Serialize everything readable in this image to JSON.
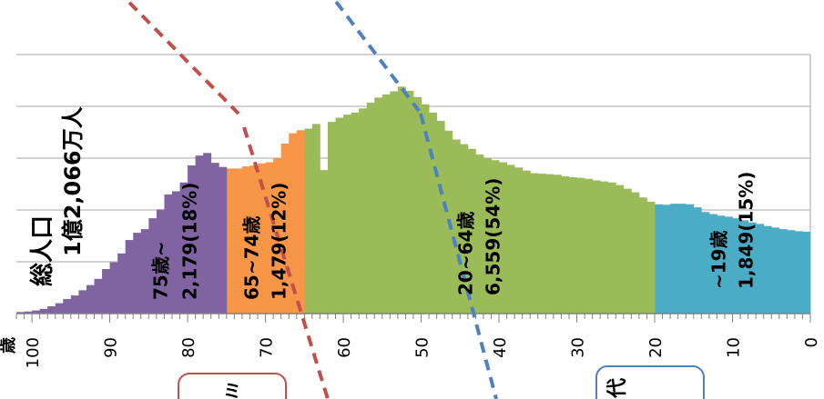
{
  "chart_data": {
    "type": "bar",
    "title_lines": [
      "総人口",
      "1億2,066万人"
    ],
    "xaxis_unit": "歳",
    "xaxis_ticks": [
      "100",
      "90",
      "80",
      "70",
      "60",
      "50",
      "40",
      "30",
      "20",
      "10",
      "0"
    ],
    "xlim": [
      0,
      102
    ],
    "ylim": [
      0,
      2.5
    ],
    "grid": "horizontal",
    "age_order": "descending",
    "groups": [
      {
        "name": "75歳~",
        "value_label": "2,179(18%)",
        "age_from": 75,
        "age_to": 101,
        "color": "#8064A2"
      },
      {
        "name": "65~74歳",
        "value_label": "1,479(12%)",
        "age_from": 65,
        "age_to": 74,
        "color": "#F79646"
      },
      {
        "name": "20~64歳",
        "value_label": "6,559(54%)",
        "age_from": 20,
        "age_to": 64,
        "color": "#9BBB59"
      },
      {
        "name": "~19歳",
        "value_label": "1,849(15%)",
        "age_from": 0,
        "age_to": 19,
        "color": "#4BACC6"
      }
    ],
    "age_values": [
      {
        "age": 0,
        "value": 1.58
      },
      {
        "age": 1,
        "value": 1.59
      },
      {
        "age": 2,
        "value": 1.61
      },
      {
        "age": 3,
        "value": 1.63
      },
      {
        "age": 4,
        "value": 1.66
      },
      {
        "age": 5,
        "value": 1.69
      },
      {
        "age": 6,
        "value": 1.73
      },
      {
        "age": 7,
        "value": 1.76
      },
      {
        "age": 8,
        "value": 1.8
      },
      {
        "age": 9,
        "value": 1.84
      },
      {
        "age": 10,
        "value": 1.87
      },
      {
        "age": 11,
        "value": 1.89
      },
      {
        "age": 12,
        "value": 1.92
      },
      {
        "age": 13,
        "value": 1.96
      },
      {
        "age": 14,
        "value": 2.05
      },
      {
        "age": 15,
        "value": 2.11
      },
      {
        "age": 16,
        "value": 2.12
      },
      {
        "age": 17,
        "value": 2.12
      },
      {
        "age": 18,
        "value": 2.1
      },
      {
        "age": 19,
        "value": 2.11
      },
      {
        "age": 20,
        "value": 2.16
      },
      {
        "age": 21,
        "value": 2.24
      },
      {
        "age": 22,
        "value": 2.34
      },
      {
        "age": 23,
        "value": 2.41
      },
      {
        "age": 24,
        "value": 2.48
      },
      {
        "age": 25,
        "value": 2.53
      },
      {
        "age": 26,
        "value": 2.55
      },
      {
        "age": 27,
        "value": 2.57
      },
      {
        "age": 28,
        "value": 2.6
      },
      {
        "age": 29,
        "value": 2.62
      },
      {
        "age": 30,
        "value": 2.63
      },
      {
        "age": 31,
        "value": 2.65
      },
      {
        "age": 32,
        "value": 2.68
      },
      {
        "age": 33,
        "value": 2.69
      },
      {
        "age": 34,
        "value": 2.7
      },
      {
        "age": 35,
        "value": 2.71
      },
      {
        "age": 36,
        "value": 2.76
      },
      {
        "age": 37,
        "value": 2.82
      },
      {
        "age": 38,
        "value": 2.87
      },
      {
        "age": 39,
        "value": 2.92
      },
      {
        "age": 40,
        "value": 2.96
      },
      {
        "age": 41,
        "value": 3.0
      },
      {
        "age": 42,
        "value": 3.07
      },
      {
        "age": 43,
        "value": 3.18
      },
      {
        "age": 44,
        "value": 3.27
      },
      {
        "age": 45,
        "value": 3.36
      },
      {
        "age": 46,
        "value": 3.53
      },
      {
        "age": 47,
        "value": 3.72
      },
      {
        "age": 48,
        "value": 3.88
      },
      {
        "age": 49,
        "value": 4.04
      },
      {
        "age": 50,
        "value": 4.18
      },
      {
        "age": 51,
        "value": 4.3
      },
      {
        "age": 52,
        "value": 4.38
      },
      {
        "age": 53,
        "value": 4.29
      },
      {
        "age": 54,
        "value": 4.23
      },
      {
        "age": 55,
        "value": 4.17
      },
      {
        "age": 56,
        "value": 4.07
      },
      {
        "age": 57,
        "value": 3.96
      },
      {
        "age": 58,
        "value": 3.88
      },
      {
        "age": 59,
        "value": 3.84
      },
      {
        "age": 60,
        "value": 3.78
      },
      {
        "age": 61,
        "value": 3.7
      },
      {
        "age": 62,
        "value": 2.77
      },
      {
        "age": 63,
        "value": 3.66
      },
      {
        "age": 64,
        "value": 3.57
      },
      {
        "age": 65,
        "value": 3.54
      },
      {
        "age": 66,
        "value": 3.48
      },
      {
        "age": 67,
        "value": 3.28
      },
      {
        "age": 68,
        "value": 3.0
      },
      {
        "age": 69,
        "value": 2.92
      },
      {
        "age": 70,
        "value": 2.9
      },
      {
        "age": 71,
        "value": 2.86
      },
      {
        "age": 72,
        "value": 2.84
      },
      {
        "age": 73,
        "value": 2.8
      },
      {
        "age": 74,
        "value": 2.8
      },
      {
        "age": 75,
        "value": 2.83
      },
      {
        "age": 76,
        "value": 2.91
      },
      {
        "age": 77,
        "value": 3.1
      },
      {
        "age": 78,
        "value": 3.05
      },
      {
        "age": 79,
        "value": 2.86
      },
      {
        "age": 80,
        "value": 2.53
      },
      {
        "age": 81,
        "value": 2.36
      },
      {
        "age": 82,
        "value": 2.3
      },
      {
        "age": 83,
        "value": 2.01
      },
      {
        "age": 84,
        "value": 1.84
      },
      {
        "age": 85,
        "value": 1.63
      },
      {
        "age": 86,
        "value": 1.56
      },
      {
        "age": 87,
        "value": 1.42
      },
      {
        "age": 88,
        "value": 1.16
      },
      {
        "age": 89,
        "value": 0.99
      },
      {
        "age": 90,
        "value": 0.86
      },
      {
        "age": 91,
        "value": 0.67
      },
      {
        "age": 92,
        "value": 0.55
      },
      {
        "age": 93,
        "value": 0.45
      },
      {
        "age": 94,
        "value": 0.35
      },
      {
        "age": 95,
        "value": 0.28
      },
      {
        "age": 96,
        "value": 0.2
      },
      {
        "age": 97,
        "value": 0.14
      },
      {
        "age": 98,
        "value": 0.09
      },
      {
        "age": 99,
        "value": 0.06
      },
      {
        "age": 100,
        "value": 0.04
      },
      {
        "age": 101,
        "value": 0.03
      }
    ],
    "overlay_texts": [
      "ミ",
      "代"
    ],
    "colors": {
      "gridline": "#A6A6A6",
      "axis": "#808080",
      "red_arrow": "#C0504D",
      "blue_arrow": "#4F81BD"
    }
  }
}
